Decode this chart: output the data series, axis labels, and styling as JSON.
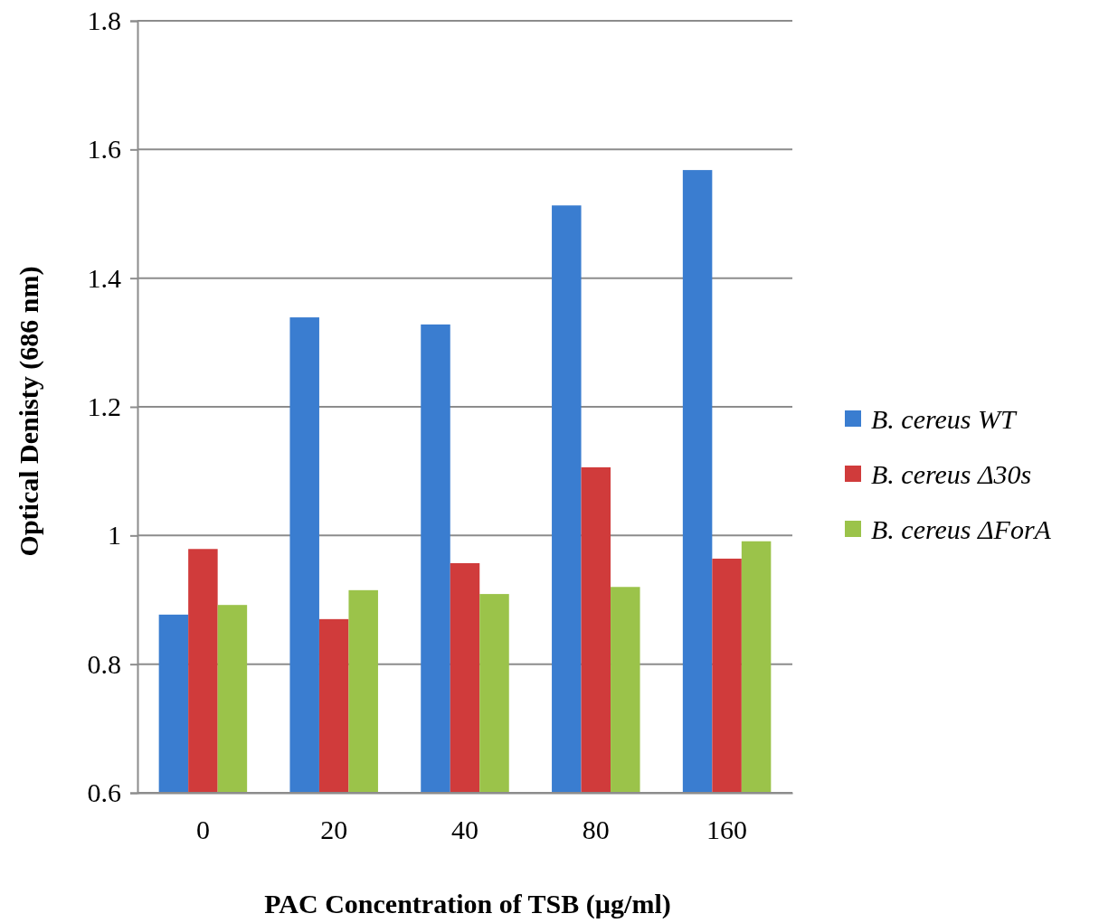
{
  "chart_data": {
    "type": "bar",
    "xlabel": "PAC Concentration of TSB (µg/ml)",
    "ylabel": "Optical Denisty  (686 nm)",
    "categories": [
      "0",
      "20",
      "40",
      "80",
      "160"
    ],
    "series": [
      {
        "name": "B. cereus WT",
        "color": "#3a7dd0",
        "values": [
          0.877,
          1.339,
          1.328,
          1.513,
          1.568
        ]
      },
      {
        "name": "B. cereus Δ30s",
        "color": "#d03b3b",
        "values": [
          0.979,
          0.87,
          0.957,
          1.106,
          0.964
        ]
      },
      {
        "name": "B. cereus ΔForA",
        "color": "#9bc34a",
        "values": [
          0.892,
          0.915,
          0.909,
          0.92,
          0.991
        ]
      }
    ],
    "ylim": [
      0.6,
      1.8
    ],
    "yticks": [
      0.6,
      0.8,
      1,
      1.2,
      1.4,
      1.6,
      1.8
    ],
    "grid": "y",
    "legend": "right"
  }
}
